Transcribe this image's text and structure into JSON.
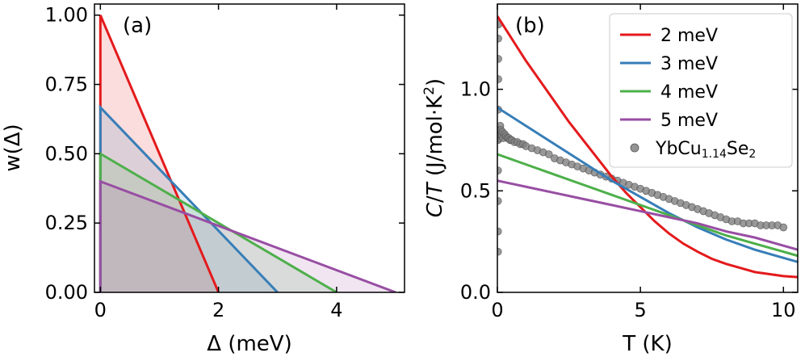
{
  "chart_data": [
    {
      "type": "line",
      "panel_label": "(a)",
      "xlabel": "Δ (meV)",
      "ylabel": "w(Δ)",
      "xlim": [
        -0.1,
        5.15
      ],
      "ylim": [
        0,
        1.04
      ],
      "xticks": [
        0,
        2,
        4
      ],
      "xtick_labels": [
        "0",
        "2",
        "4"
      ],
      "yticks": [
        0,
        0.25,
        0.5,
        0.75,
        1.0
      ],
      "ytick_labels": [
        "0.00",
        "0.25",
        "0.50",
        "0.75",
        "1.00"
      ],
      "series": [
        {
          "name": "2 meV",
          "color": "#e41a1c",
          "x": [
            0,
            0,
            2
          ],
          "y": [
            0,
            1.0,
            0
          ]
        },
        {
          "name": "3 meV",
          "color": "#377eb8",
          "x": [
            0,
            0,
            3
          ],
          "y": [
            0,
            0.667,
            0
          ]
        },
        {
          "name": "4 meV",
          "color": "#4daf4a",
          "x": [
            0,
            0,
            4
          ],
          "y": [
            0,
            0.5,
            0
          ]
        },
        {
          "name": "5 meV",
          "color": "#984ea3",
          "x": [
            0,
            0,
            5
          ],
          "y": [
            0,
            0.4,
            0
          ]
        }
      ]
    },
    {
      "type": "line",
      "panel_label": "(b)",
      "xlabel": "T (K)",
      "ylabel_parts": [
        "C",
        "/",
        "T",
        " (J/mol·K",
        "2",
        ")"
      ],
      "xlim": [
        0,
        10.5
      ],
      "ylim": [
        0,
        1.42
      ],
      "xticks": [
        0,
        5,
        10
      ],
      "xtick_labels": [
        "0",
        "5",
        "10"
      ],
      "yticks": [
        0,
        0.5,
        1.0
      ],
      "ytick_labels": [
        "0.0",
        "0.5",
        "1.0"
      ],
      "legend": {
        "location": "top-right",
        "entries": [
          {
            "label": "2 meV",
            "color": "#e41a1c",
            "kind": "line"
          },
          {
            "label": "3 meV",
            "color": "#377eb8",
            "kind": "line"
          },
          {
            "label": "4 meV",
            "color": "#4daf4a",
            "kind": "line"
          },
          {
            "label": "5 meV",
            "color": "#984ea3",
            "kind": "line"
          },
          {
            "label_parts": [
              "YbCu",
              "1.14",
              "Se",
              "2"
            ],
            "color": "#808080",
            "kind": "marker"
          }
        ]
      },
      "series": [
        {
          "name": "2 meV",
          "color": "#e41a1c",
          "x": [
            0,
            0.5,
            1,
            1.5,
            2,
            2.5,
            3,
            3.5,
            4,
            4.5,
            5,
            5.5,
            6,
            6.5,
            7,
            7.5,
            8,
            8.5,
            9,
            9.5,
            10,
            10.5
          ],
          "y": [
            1.36,
            1.25,
            1.14,
            1.04,
            0.94,
            0.84,
            0.75,
            0.66,
            0.57,
            0.49,
            0.42,
            0.35,
            0.29,
            0.24,
            0.2,
            0.165,
            0.14,
            0.12,
            0.1,
            0.09,
            0.08,
            0.075
          ]
        },
        {
          "name": "3 meV",
          "color": "#377eb8",
          "x": [
            0,
            1,
            2,
            3,
            4,
            5,
            6,
            7,
            8,
            9,
            10,
            10.5
          ],
          "y": [
            0.91,
            0.82,
            0.73,
            0.64,
            0.55,
            0.47,
            0.39,
            0.32,
            0.26,
            0.21,
            0.17,
            0.15
          ]
        },
        {
          "name": "4 meV",
          "color": "#4daf4a",
          "x": [
            0,
            1,
            2,
            3,
            4,
            5,
            6,
            7,
            8,
            9,
            10,
            10.5
          ],
          "y": [
            0.68,
            0.63,
            0.58,
            0.53,
            0.48,
            0.43,
            0.38,
            0.33,
            0.28,
            0.24,
            0.2,
            0.18
          ]
        },
        {
          "name": "5 meV",
          "color": "#984ea3",
          "x": [
            0,
            1,
            2,
            3,
            4,
            5,
            6,
            7,
            8,
            9,
            10,
            10.5
          ],
          "y": [
            0.55,
            0.52,
            0.49,
            0.46,
            0.43,
            0.4,
            0.37,
            0.34,
            0.3,
            0.27,
            0.23,
            0.21
          ]
        },
        {
          "name": "YbCu1.14Se2",
          "kind": "scatter",
          "color": "#808080",
          "x": [
            0.02,
            0.02,
            0.02,
            0.02,
            0.02,
            0.03,
            0.03,
            0.03,
            0.03,
            0.04,
            0.05,
            0.06,
            0.08,
            0.1,
            0.12,
            0.15,
            0.18,
            0.2,
            0.25,
            0.3,
            0.35,
            0.4,
            0.45,
            0.5,
            0.6,
            0.7,
            0.8,
            0.9,
            1.0,
            1.2,
            1.4,
            1.6,
            1.8,
            2.0,
            2.2,
            2.4,
            2.6,
            2.8,
            3.0,
            3.2,
            3.4,
            3.6,
            3.8,
            4.0,
            4.2,
            4.4,
            4.6,
            4.8,
            5.0,
            5.2,
            5.4,
            5.6,
            5.8,
            6.0,
            6.2,
            6.4,
            6.6,
            6.8,
            7.0,
            7.2,
            7.4,
            7.6,
            7.8,
            8.0,
            8.2,
            8.4,
            8.6,
            8.8,
            9.0,
            9.2,
            9.4,
            9.6,
            9.8,
            10.0
          ],
          "y": [
            0.2,
            0.3,
            0.45,
            0.6,
            0.75,
            0.9,
            1.05,
            1.15,
            1.25,
            1.32,
            0.8,
            0.76,
            0.78,
            0.82,
            0.8,
            0.77,
            0.79,
            0.76,
            0.78,
            0.77,
            0.76,
            0.76,
            0.75,
            0.75,
            0.74,
            0.74,
            0.73,
            0.73,
            0.72,
            0.71,
            0.7,
            0.69,
            0.68,
            0.66,
            0.65,
            0.64,
            0.63,
            0.62,
            0.61,
            0.6,
            0.59,
            0.58,
            0.57,
            0.56,
            0.55,
            0.54,
            0.53,
            0.52,
            0.51,
            0.5,
            0.49,
            0.48,
            0.47,
            0.46,
            0.45,
            0.44,
            0.43,
            0.42,
            0.41,
            0.4,
            0.39,
            0.38,
            0.37,
            0.36,
            0.35,
            0.35,
            0.34,
            0.34,
            0.34,
            0.33,
            0.33,
            0.33,
            0.33,
            0.32
          ]
        }
      ]
    }
  ]
}
